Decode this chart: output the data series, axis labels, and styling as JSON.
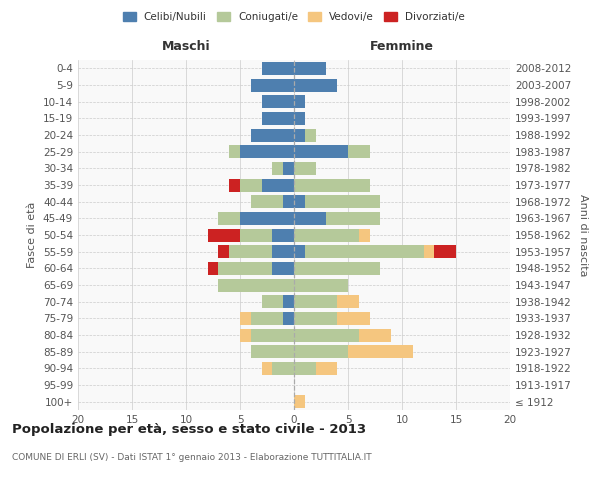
{
  "age_groups": [
    "100+",
    "95-99",
    "90-94",
    "85-89",
    "80-84",
    "75-79",
    "70-74",
    "65-69",
    "60-64",
    "55-59",
    "50-54",
    "45-49",
    "40-44",
    "35-39",
    "30-34",
    "25-29",
    "20-24",
    "15-19",
    "10-14",
    "5-9",
    "0-4"
  ],
  "birth_years": [
    "≤ 1912",
    "1913-1917",
    "1918-1922",
    "1923-1927",
    "1928-1932",
    "1933-1937",
    "1938-1942",
    "1943-1947",
    "1948-1952",
    "1953-1957",
    "1958-1962",
    "1963-1967",
    "1968-1972",
    "1973-1977",
    "1978-1982",
    "1983-1987",
    "1988-1992",
    "1993-1997",
    "1998-2002",
    "2003-2007",
    "2008-2012"
  ],
  "colors": {
    "celibe": "#4e7faf",
    "coniugato": "#b5c99a",
    "vedovo": "#f5c67f",
    "divorziato": "#cc2222"
  },
  "legend_labels": [
    "Celibi/Nubili",
    "Coniugati/e",
    "Vedovi/e",
    "Divorziati/e"
  ],
  "legend_colors": [
    "#4e7faf",
    "#b5c99a",
    "#f5c67f",
    "#cc2222"
  ],
  "maschi": {
    "celibe": [
      0,
      0,
      0,
      0,
      0,
      1,
      1,
      0,
      2,
      2,
      2,
      5,
      1,
      3,
      1,
      5,
      4,
      3,
      3,
      4,
      3
    ],
    "coniugato": [
      0,
      0,
      2,
      4,
      4,
      3,
      2,
      7,
      5,
      4,
      3,
      2,
      3,
      2,
      1,
      1,
      0,
      0,
      0,
      0,
      0
    ],
    "vedovo": [
      0,
      0,
      1,
      0,
      1,
      1,
      0,
      0,
      0,
      0,
      0,
      0,
      0,
      0,
      0,
      0,
      0,
      0,
      0,
      0,
      0
    ],
    "divorziato": [
      0,
      0,
      0,
      0,
      0,
      0,
      0,
      0,
      1,
      1,
      3,
      0,
      0,
      1,
      0,
      0,
      0,
      0,
      0,
      0,
      0
    ]
  },
  "femmine": {
    "celibe": [
      0,
      0,
      0,
      0,
      0,
      0,
      0,
      0,
      0,
      1,
      0,
      3,
      1,
      0,
      0,
      5,
      1,
      1,
      1,
      4,
      3
    ],
    "coniugato": [
      0,
      0,
      2,
      5,
      6,
      4,
      4,
      5,
      8,
      11,
      6,
      5,
      7,
      7,
      2,
      2,
      1,
      0,
      0,
      0,
      0
    ],
    "vedovo": [
      1,
      0,
      2,
      6,
      3,
      3,
      2,
      0,
      0,
      1,
      1,
      0,
      0,
      0,
      0,
      0,
      0,
      0,
      0,
      0,
      0
    ],
    "divorziato": [
      0,
      0,
      0,
      0,
      0,
      0,
      0,
      0,
      0,
      2,
      0,
      0,
      0,
      0,
      0,
      0,
      0,
      0,
      0,
      0,
      0
    ]
  },
  "title": "Popolazione per età, sesso e stato civile - 2013",
  "subtitle": "COMUNE DI ERLI (SV) - Dati ISTAT 1° gennaio 2013 - Elaborazione TUTTITALIA.IT",
  "ylabel_left": "Fasce di età",
  "ylabel_right": "Anni di nascita",
  "header_maschi": "Maschi",
  "header_femmine": "Femmine",
  "bg_color": "#f9f9f9"
}
